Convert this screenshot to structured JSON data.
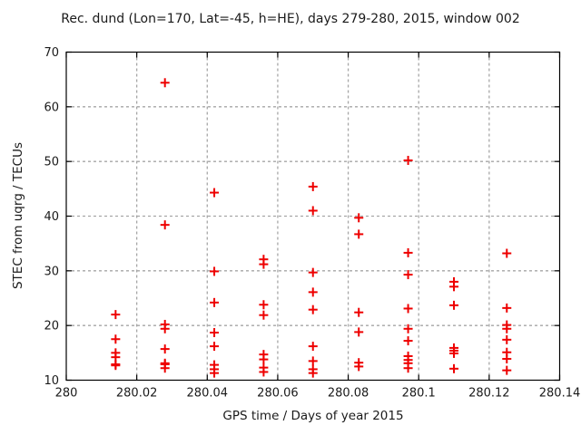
{
  "title": "Rec. dund (Lon=170, Lat=-45, h=HE), days 279-280, 2015, window 002",
  "chart_data": {
    "type": "scatter",
    "title": "Rec. dund (Lon=170, Lat=-45, h=HE), days 279-280, 2015, window 002",
    "xlabel": "GPS time / Days of year 2015",
    "ylabel": "STEC from uqrg / TECUs",
    "xlim": [
      280,
      280.14
    ],
    "ylim": [
      10,
      70
    ],
    "xticks": [
      280,
      280.02,
      280.04,
      280.06,
      280.08,
      280.1,
      280.12,
      280.14
    ],
    "xtick_labels": [
      "280",
      "280.02",
      "280.04",
      "280.06",
      "280.08",
      "280.1",
      "280.12",
      "280.14"
    ],
    "yticks": [
      10,
      20,
      30,
      40,
      50,
      60,
      70
    ],
    "ytick_labels": [
      "10",
      "20",
      "30",
      "40",
      "50",
      "60",
      "70"
    ],
    "grid": true,
    "legend": "none",
    "marker": "plus",
    "colors": {
      "marker": "#ee0000",
      "grid": "#a6a6a6",
      "border": "#000000",
      "text": "#1a1a1a",
      "background": "#ffffff"
    },
    "points": [
      [
        280.014,
        22.0
      ],
      [
        280.014,
        17.5
      ],
      [
        280.014,
        15.0
      ],
      [
        280.014,
        14.2
      ],
      [
        280.014,
        12.9
      ],
      [
        280.014,
        12.7
      ],
      [
        280.028,
        64.4
      ],
      [
        280.028,
        38.4
      ],
      [
        280.028,
        20.2
      ],
      [
        280.028,
        19.4
      ],
      [
        280.028,
        15.7
      ],
      [
        280.028,
        13.1
      ],
      [
        280.028,
        12.9
      ],
      [
        280.028,
        12.2
      ],
      [
        280.042,
        44.3
      ],
      [
        280.042,
        29.9
      ],
      [
        280.042,
        24.2
      ],
      [
        280.042,
        18.7
      ],
      [
        280.042,
        16.2
      ],
      [
        280.042,
        12.8
      ],
      [
        280.042,
        12.0
      ],
      [
        280.042,
        11.3
      ],
      [
        280.056,
        32.1
      ],
      [
        280.056,
        31.2
      ],
      [
        280.056,
        23.8
      ],
      [
        280.056,
        21.9
      ],
      [
        280.056,
        14.7
      ],
      [
        280.056,
        13.8
      ],
      [
        280.056,
        12.3
      ],
      [
        280.056,
        11.5
      ],
      [
        280.07,
        45.4
      ],
      [
        280.07,
        41.0
      ],
      [
        280.07,
        29.7
      ],
      [
        280.07,
        26.1
      ],
      [
        280.07,
        22.9
      ],
      [
        280.07,
        16.2
      ],
      [
        280.07,
        13.5
      ],
      [
        280.07,
        12.0
      ],
      [
        280.07,
        11.3
      ],
      [
        280.083,
        39.7
      ],
      [
        280.083,
        36.7
      ],
      [
        280.083,
        22.4
      ],
      [
        280.083,
        18.8
      ],
      [
        280.083,
        13.2
      ],
      [
        280.083,
        12.5
      ],
      [
        280.097,
        50.2
      ],
      [
        280.097,
        33.3
      ],
      [
        280.097,
        29.3
      ],
      [
        280.097,
        23.1
      ],
      [
        280.097,
        19.4
      ],
      [
        280.097,
        17.2
      ],
      [
        280.097,
        14.4
      ],
      [
        280.097,
        13.7
      ],
      [
        280.097,
        13.1
      ],
      [
        280.097,
        12.2
      ],
      [
        280.11,
        28.0
      ],
      [
        280.11,
        27.1
      ],
      [
        280.11,
        23.7
      ],
      [
        280.11,
        15.9
      ],
      [
        280.11,
        15.4
      ],
      [
        280.11,
        14.9
      ],
      [
        280.11,
        12.1
      ],
      [
        280.125,
        33.2
      ],
      [
        280.125,
        23.2
      ],
      [
        280.125,
        20.1
      ],
      [
        280.125,
        19.4
      ],
      [
        280.125,
        17.4
      ],
      [
        280.125,
        15.1
      ],
      [
        280.125,
        13.9
      ],
      [
        280.125,
        11.8
      ]
    ]
  }
}
